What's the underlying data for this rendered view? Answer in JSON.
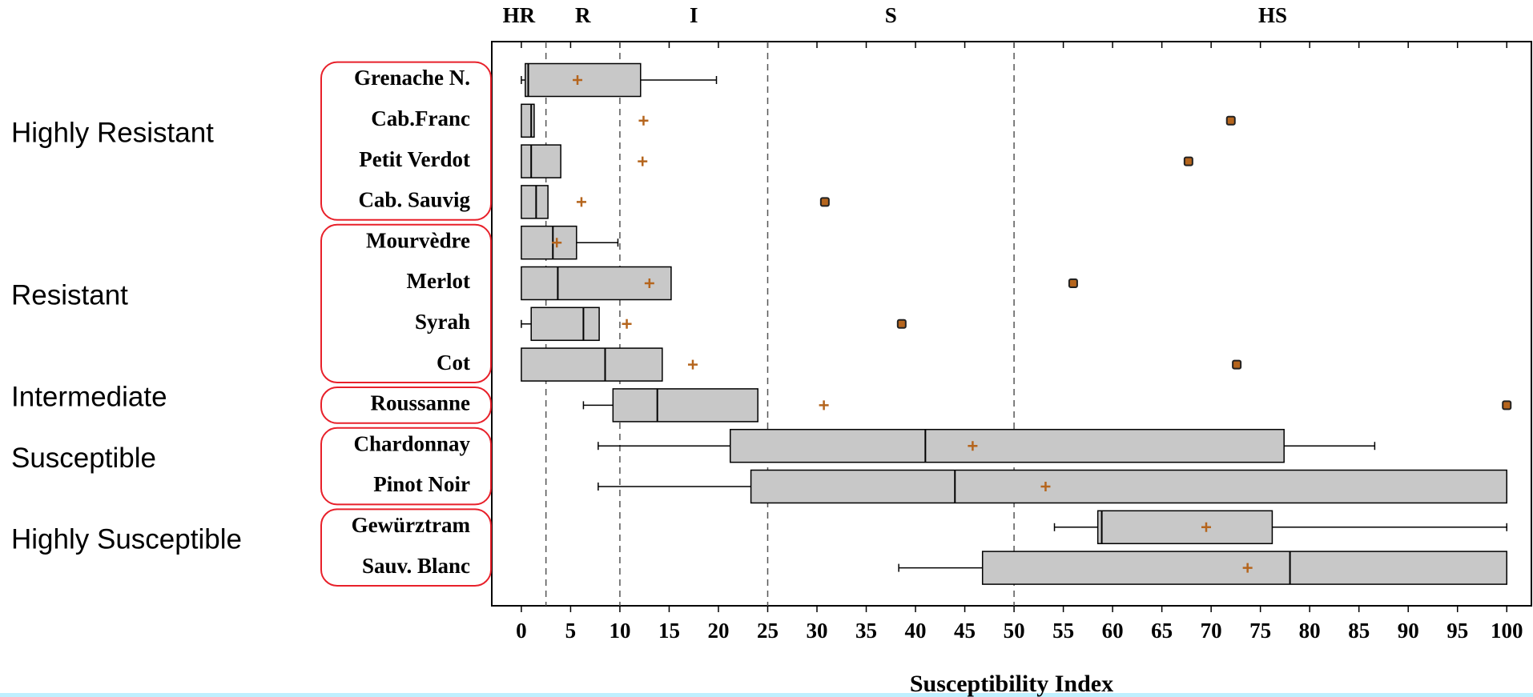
{
  "chart_data": {
    "type": "boxplot",
    "orientation": "horizontal",
    "xlabel": "Susceptibility Index",
    "xlim": [
      -3,
      102.5
    ],
    "xticks": [
      0,
      5,
      10,
      15,
      20,
      25,
      30,
      35,
      40,
      45,
      50,
      55,
      60,
      65,
      70,
      75,
      80,
      85,
      90,
      95,
      100
    ],
    "reference_lines": [
      2.5,
      10,
      25,
      50
    ],
    "zone_labels": [
      "HR",
      "R",
      "I",
      "S",
      "HS"
    ],
    "box_color": "#c8c8c8",
    "mean_color": "#b5651d",
    "group_border_color": "#e8202a",
    "groups": [
      {
        "label": "Highly Resistant",
        "items": [
          {
            "name": "Grenache N.",
            "whisker_low": 0,
            "q1": 0.4,
            "median": 0.7,
            "q3": 12.1,
            "whisker_high": 19.8,
            "mean": 5.7,
            "outliers": []
          },
          {
            "name": "Cab.Franc",
            "whisker_low": null,
            "q1": 0,
            "median": 1.0,
            "q3": 1.3,
            "whisker_high": null,
            "mean": 12.4,
            "outliers": [
              72.0
            ]
          },
          {
            "name": "Petit Verdot",
            "whisker_low": null,
            "q1": 0,
            "median": 1.0,
            "q3": 4.0,
            "whisker_high": null,
            "mean": 12.3,
            "outliers": [
              67.7
            ]
          },
          {
            "name": "Cab. Sauvig",
            "whisker_low": null,
            "q1": 0,
            "median": 1.5,
            "q3": 2.7,
            "whisker_high": null,
            "mean": 6.1,
            "outliers": [
              30.8
            ]
          }
        ]
      },
      {
        "label": "Resistant",
        "items": [
          {
            "name": "Mourvèdre",
            "whisker_low": null,
            "q1": 0,
            "median": 3.2,
            "q3": 5.6,
            "whisker_high": 9.8,
            "mean": 3.6,
            "outliers": []
          },
          {
            "name": "Merlot",
            "whisker_low": null,
            "q1": 0,
            "median": 3.7,
            "q3": 15.2,
            "whisker_high": null,
            "mean": 13.0,
            "outliers": [
              56.0
            ]
          },
          {
            "name": "Syrah",
            "whisker_low": 0,
            "q1": 1.0,
            "median": 6.3,
            "q3": 7.9,
            "whisker_high": null,
            "mean": 10.7,
            "outliers": [
              38.6
            ]
          },
          {
            "name": "Cot",
            "whisker_low": null,
            "q1": 0,
            "median": 8.5,
            "q3": 14.3,
            "whisker_high": null,
            "mean": 17.4,
            "outliers": [
              72.6
            ]
          }
        ]
      },
      {
        "label": "Intermediate",
        "items": [
          {
            "name": "Roussanne",
            "whisker_low": 6.3,
            "q1": 9.3,
            "median": 13.8,
            "q3": 24.0,
            "whisker_high": null,
            "mean": 30.7,
            "outliers": [
              100
            ]
          }
        ]
      },
      {
        "label": "Susceptible",
        "items": [
          {
            "name": "Chardonnay",
            "whisker_low": 7.8,
            "q1": 21.2,
            "median": 41.0,
            "q3": 77.4,
            "whisker_high": 86.6,
            "mean": 45.8,
            "outliers": []
          },
          {
            "name": "Pinot Noir",
            "whisker_low": 7.8,
            "q1": 23.3,
            "median": 44.0,
            "q3": 100,
            "whisker_high": null,
            "mean": 53.2,
            "outliers": []
          }
        ]
      },
      {
        "label": "Highly Susceptible",
        "items": [
          {
            "name": "Gewürztram",
            "whisker_low": 54.1,
            "q1": 58.5,
            "median": 58.9,
            "q3": 76.2,
            "whisker_high": 100,
            "mean": 69.5,
            "outliers": []
          },
          {
            "name": "Sauv. Blanc",
            "whisker_low": 38.3,
            "q1": 46.8,
            "median": 78.0,
            "q3": 100,
            "whisker_high": null,
            "mean": 73.7,
            "outliers": []
          }
        ]
      }
    ]
  }
}
